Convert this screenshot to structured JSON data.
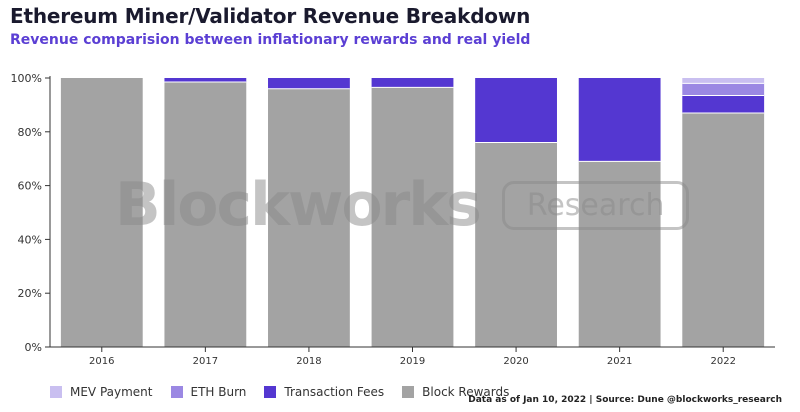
{
  "title": "Ethereum Miner/Validator Revenue Breakdown",
  "subtitle": "Revenue comparision between inflationary rewards and real yield",
  "source_note": "Data as of Jan 10, 2022 | Source: Dune @blockworks_research",
  "watermark": {
    "brand": "Blockworks",
    "tag": "Research"
  },
  "colors": {
    "block_rewards": "#a3a3a3",
    "transaction_fees": "#5437d1",
    "eth_burn": "#9b88e3",
    "mev_payment": "#c9bff0"
  },
  "chart_data": {
    "type": "bar",
    "stacked": true,
    "normalized": true,
    "title": "Ethereum Miner/Validator Revenue Breakdown",
    "subtitle": "Revenue comparision between inflationary rewards and real yield",
    "categories": [
      "2016",
      "2017",
      "2018",
      "2019",
      "2020",
      "2021",
      "2022"
    ],
    "ylim": [
      0,
      100
    ],
    "yticks": [
      "0%",
      "20%",
      "40%",
      "60%",
      "80%",
      "100%"
    ],
    "grid": false,
    "legend_position": "bottom-left",
    "series": [
      {
        "name": "Block Rewards",
        "color": "#a3a3a3",
        "values": [
          100,
          98.5,
          96,
          96.5,
          76,
          69,
          87
        ]
      },
      {
        "name": "Transaction Fees",
        "color": "#5437d1",
        "values": [
          0,
          1.5,
          4,
          3.5,
          24,
          31,
          6.5
        ]
      },
      {
        "name": "ETH Burn",
        "color": "#9b88e3",
        "values": [
          0,
          0,
          0,
          0,
          0,
          0,
          4.5
        ]
      },
      {
        "name": "MEV Payment",
        "color": "#c9bff0",
        "values": [
          0,
          0,
          0,
          0,
          0,
          0,
          2
        ]
      }
    ],
    "legend_order": [
      "MEV Payment",
      "ETH Burn",
      "Transaction Fees",
      "Block Rewards"
    ]
  }
}
